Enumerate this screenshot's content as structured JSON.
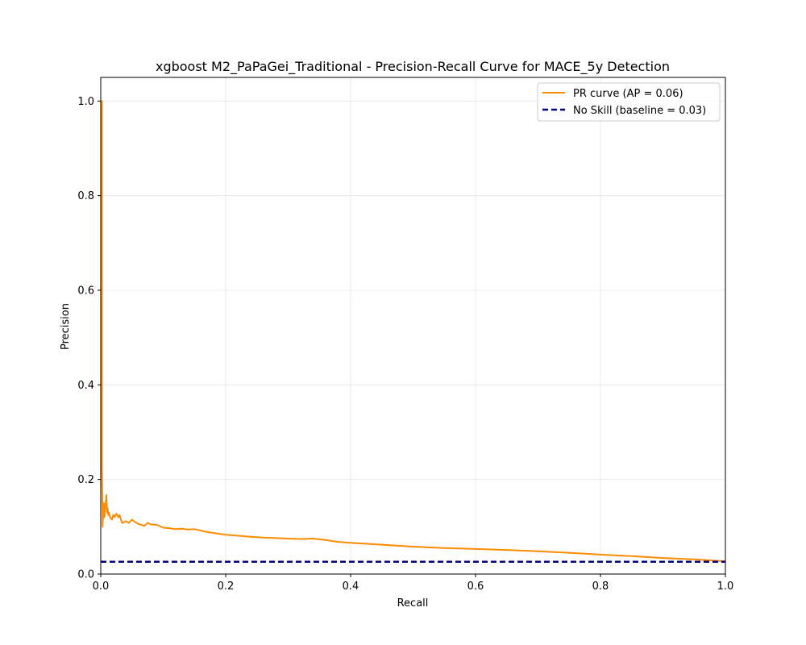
{
  "chart_data": {
    "type": "line",
    "title": "xgboost M2_PaPaGei_Traditional - Precision-Recall Curve for MACE_5y Detection",
    "xlabel": "Recall",
    "ylabel": "Precision",
    "xlim": [
      0.0,
      1.0
    ],
    "ylim": [
      0.0,
      1.05
    ],
    "xticks": [
      0.0,
      0.2,
      0.4,
      0.6,
      0.8,
      1.0
    ],
    "yticks": [
      0.0,
      0.2,
      0.4,
      0.6,
      0.8,
      1.0
    ],
    "xtick_labels": [
      "0.0",
      "0.2",
      "0.4",
      "0.6",
      "0.8",
      "1.0"
    ],
    "ytick_labels": [
      "0.0",
      "0.2",
      "0.4",
      "0.6",
      "0.8",
      "1.0"
    ],
    "grid": true,
    "legend_position": "top-right",
    "series": [
      {
        "name": "PR curve (AP = 0.06)",
        "color": "#ff8c00",
        "style": "solid",
        "x": [
          0.0,
          0.002,
          0.002,
          0.003,
          0.003,
          0.004,
          0.005,
          0.006,
          0.007,
          0.008,
          0.009,
          0.01,
          0.011,
          0.012,
          0.013,
          0.015,
          0.018,
          0.02,
          0.022,
          0.025,
          0.028,
          0.03,
          0.033,
          0.035,
          0.04,
          0.045,
          0.05,
          0.055,
          0.06,
          0.065,
          0.07,
          0.075,
          0.08,
          0.09,
          0.1,
          0.11,
          0.12,
          0.13,
          0.14,
          0.15,
          0.16,
          0.17,
          0.18,
          0.2,
          0.22,
          0.24,
          0.26,
          0.28,
          0.3,
          0.32,
          0.34,
          0.36,
          0.38,
          0.4,
          0.45,
          0.5,
          0.55,
          0.6,
          0.65,
          0.7,
          0.75,
          0.8,
          0.85,
          0.9,
          0.95,
          1.0
        ],
        "y": [
          1.0,
          1.0,
          0.22,
          0.12,
          0.1,
          0.13,
          0.15,
          0.12,
          0.14,
          0.15,
          0.167,
          0.13,
          0.14,
          0.125,
          0.13,
          0.12,
          0.115,
          0.125,
          0.12,
          0.128,
          0.12,
          0.125,
          0.112,
          0.108,
          0.112,
          0.108,
          0.115,
          0.11,
          0.106,
          0.104,
          0.102,
          0.108,
          0.105,
          0.104,
          0.098,
          0.097,
          0.095,
          0.096,
          0.094,
          0.095,
          0.092,
          0.089,
          0.087,
          0.083,
          0.081,
          0.079,
          0.077,
          0.076,
          0.075,
          0.074,
          0.075,
          0.072,
          0.068,
          0.066,
          0.062,
          0.058,
          0.055,
          0.053,
          0.051,
          0.048,
          0.045,
          0.041,
          0.038,
          0.034,
          0.031,
          0.027
        ]
      },
      {
        "name": "No Skill (baseline = 0.03)",
        "color": "#000080",
        "style": "dashed",
        "x": [
          0.0,
          1.0
        ],
        "y": [
          0.026,
          0.026
        ]
      }
    ]
  }
}
